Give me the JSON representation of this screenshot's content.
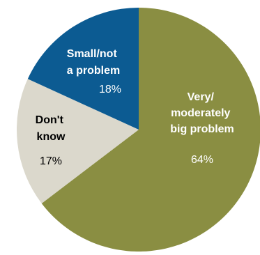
{
  "chart_data": {
    "type": "pie",
    "slices": [
      {
        "label_lines": [
          "Very/",
          "moderately",
          "big problem"
        ],
        "value_label": "64%",
        "value": 64,
        "color": "#8a8e42",
        "text_color": "#ffffff"
      },
      {
        "label_lines": [
          "Don't",
          "know"
        ],
        "value_label": "17%",
        "value": 17,
        "color": "#dbd8cc",
        "text_color": "#000000"
      },
      {
        "label_lines": [
          "Small/not",
          "a problem"
        ],
        "value_label": "18%",
        "value": 18,
        "color": "#0c5b92",
        "text_color": "#ffffff"
      }
    ]
  }
}
